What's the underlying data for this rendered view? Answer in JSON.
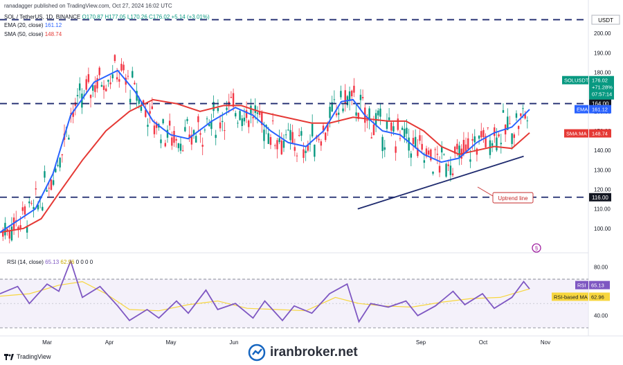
{
  "header": {
    "published": "ranadagger published on TradingView.com, Oct 27, 2024 16:02 UTC",
    "pair": "SOL / TetherUS, 1D, BINANCE",
    "ohlc": "O170.87 H177.05 L170.26 C176.02 +5.14 (+3.01%)",
    "ema_label": "EMA (20, close)",
    "ema_value": "161.12",
    "sma_label": "SMA (50, close)",
    "sma_value": "148.74",
    "currency": "USDT"
  },
  "rsi_header": {
    "label": "RSI (14, close)",
    "value1": "65.13",
    "value2": "62.96",
    "zeros": "0 0 0 0"
  },
  "colors": {
    "up": "#089981",
    "down": "#f23645",
    "ema": "#2962ff",
    "sma": "#e53935",
    "rsi": "#7e57c2",
    "rsi_ma": "#f7d63e",
    "lines": "#1e2a6e"
  },
  "chart_data": [
    {
      "type": "candlestick",
      "title": "SOL / TetherUS, 1D, BINANCE",
      "ylim": [
        90,
        210
      ],
      "yticks": [
        "200.00",
        "190.00",
        "180.00",
        "170.00",
        "160.00",
        "150.00",
        "140.00",
        "130.00",
        "120.00",
        "110.00",
        "100.00"
      ],
      "xticks": [
        "Mar",
        "Apr",
        "May",
        "Jun",
        "Sep",
        "Oct",
        "Nov"
      ],
      "horizontal_lines": [
        {
          "label": "",
          "value": 207
        },
        {
          "label": "164.00",
          "value": 164
        },
        {
          "label": "116.00",
          "value": 116
        }
      ],
      "trendline": {
        "label": "Uptrend line",
        "from": [
          0.608,
          110
        ],
        "to": [
          0.89,
          137
        ]
      },
      "price_labels": [
        {
          "name": "SOLUSDT",
          "lines": [
            "176.02",
            "+71.28%",
            "07:57:14"
          ],
          "value": 176.02
        },
        {
          "name": "EMA",
          "value_text": "161.12",
          "value": 161.12
        },
        {
          "name": "SMA:MA",
          "value_text": "148.74",
          "value": 148.74
        }
      ],
      "series": [
        {
          "name": "EMA",
          "points": [
            [
              0,
              98
            ],
            [
              0.03,
              104
            ],
            [
              0.06,
              110
            ],
            [
              0.09,
              128
            ],
            [
              0.12,
              158
            ],
            [
              0.16,
              175
            ],
            [
              0.2,
              181
            ],
            [
              0.23,
              170
            ],
            [
              0.26,
              155
            ],
            [
              0.29,
              148
            ],
            [
              0.32,
              146
            ],
            [
              0.36,
              155
            ],
            [
              0.4,
              162
            ],
            [
              0.43,
              158
            ],
            [
              0.46,
              150
            ],
            [
              0.49,
              144
            ],
            [
              0.52,
              142
            ],
            [
              0.55,
              150
            ],
            [
              0.58,
              165
            ],
            [
              0.6,
              166
            ],
            [
              0.62,
              158
            ],
            [
              0.65,
              150
            ],
            [
              0.68,
              148
            ],
            [
              0.72,
              138
            ],
            [
              0.75,
              134
            ],
            [
              0.78,
              136
            ],
            [
              0.81,
              144
            ],
            [
              0.84,
              149
            ],
            [
              0.87,
              152
            ],
            [
              0.9,
              161
            ]
          ]
        },
        {
          "name": "SMA",
          "points": [
            [
              0,
              98
            ],
            [
              0.04,
              100
            ],
            [
              0.07,
              105
            ],
            [
              0.1,
              118
            ],
            [
              0.14,
              135
            ],
            [
              0.18,
              150
            ],
            [
              0.22,
              160
            ],
            [
              0.26,
              166
            ],
            [
              0.3,
              164
            ],
            [
              0.34,
              160
            ],
            [
              0.38,
              163
            ],
            [
              0.41,
              163
            ],
            [
              0.44,
              160
            ],
            [
              0.47,
              158
            ],
            [
              0.5,
              156
            ],
            [
              0.53,
              154
            ],
            [
              0.56,
              154
            ],
            [
              0.6,
              157
            ],
            [
              0.63,
              156
            ],
            [
              0.66,
              155
            ],
            [
              0.69,
              155
            ],
            [
              0.72,
              150
            ],
            [
              0.75,
              142
            ],
            [
              0.78,
              138
            ],
            [
              0.81,
              140
            ],
            [
              0.84,
              142
            ],
            [
              0.87,
              141
            ],
            [
              0.9,
              149
            ]
          ]
        }
      ]
    },
    {
      "type": "line",
      "title": "RSI (14, close)",
      "ylim": [
        25,
        90
      ],
      "yticks": [
        "80.00",
        "40.00"
      ],
      "price_labels": [
        {
          "name": "RSI",
          "value_text": "65.13",
          "value": 65.13
        },
        {
          "name": "RSI-based MA",
          "value_text": "62.96",
          "value": 62.96
        }
      ],
      "series": [
        {
          "name": "RSI",
          "points": [
            [
              0,
              58
            ],
            [
              0.03,
              64
            ],
            [
              0.05,
              50
            ],
            [
              0.08,
              66
            ],
            [
              0.1,
              60
            ],
            [
              0.12,
              85
            ],
            [
              0.14,
              55
            ],
            [
              0.17,
              64
            ],
            [
              0.2,
              48
            ],
            [
              0.22,
              36
            ],
            [
              0.25,
              45
            ],
            [
              0.27,
              38
            ],
            [
              0.3,
              52
            ],
            [
              0.32,
              42
            ],
            [
              0.35,
              61
            ],
            [
              0.37,
              45
            ],
            [
              0.4,
              50
            ],
            [
              0.43,
              38
            ],
            [
              0.45,
              52
            ],
            [
              0.48,
              36
            ],
            [
              0.5,
              48
            ],
            [
              0.53,
              42
            ],
            [
              0.56,
              58
            ],
            [
              0.59,
              66
            ],
            [
              0.61,
              35
            ],
            [
              0.63,
              50
            ],
            [
              0.66,
              47
            ],
            [
              0.69,
              52
            ],
            [
              0.71,
              40
            ],
            [
              0.74,
              48
            ],
            [
              0.77,
              60
            ],
            [
              0.79,
              49
            ],
            [
              0.82,
              58
            ],
            [
              0.84,
              46
            ],
            [
              0.87,
              55
            ],
            [
              0.89,
              68
            ],
            [
              0.9,
              62
            ]
          ]
        },
        {
          "name": "RSI-based MA",
          "points": [
            [
              0,
              56
            ],
            [
              0.05,
              58
            ],
            [
              0.1,
              65
            ],
            [
              0.14,
              68
            ],
            [
              0.18,
              58
            ],
            [
              0.22,
              45
            ],
            [
              0.27,
              44
            ],
            [
              0.32,
              49
            ],
            [
              0.37,
              52
            ],
            [
              0.42,
              46
            ],
            [
              0.47,
              45
            ],
            [
              0.52,
              44
            ],
            [
              0.57,
              55
            ],
            [
              0.61,
              50
            ],
            [
              0.65,
              48
            ],
            [
              0.7,
              47
            ],
            [
              0.75,
              51
            ],
            [
              0.8,
              54
            ],
            [
              0.85,
              55
            ],
            [
              0.9,
              62
            ]
          ]
        }
      ]
    }
  ],
  "footer": {
    "logo": "TradingView"
  },
  "watermark": {
    "text": "iranbroker.net"
  }
}
